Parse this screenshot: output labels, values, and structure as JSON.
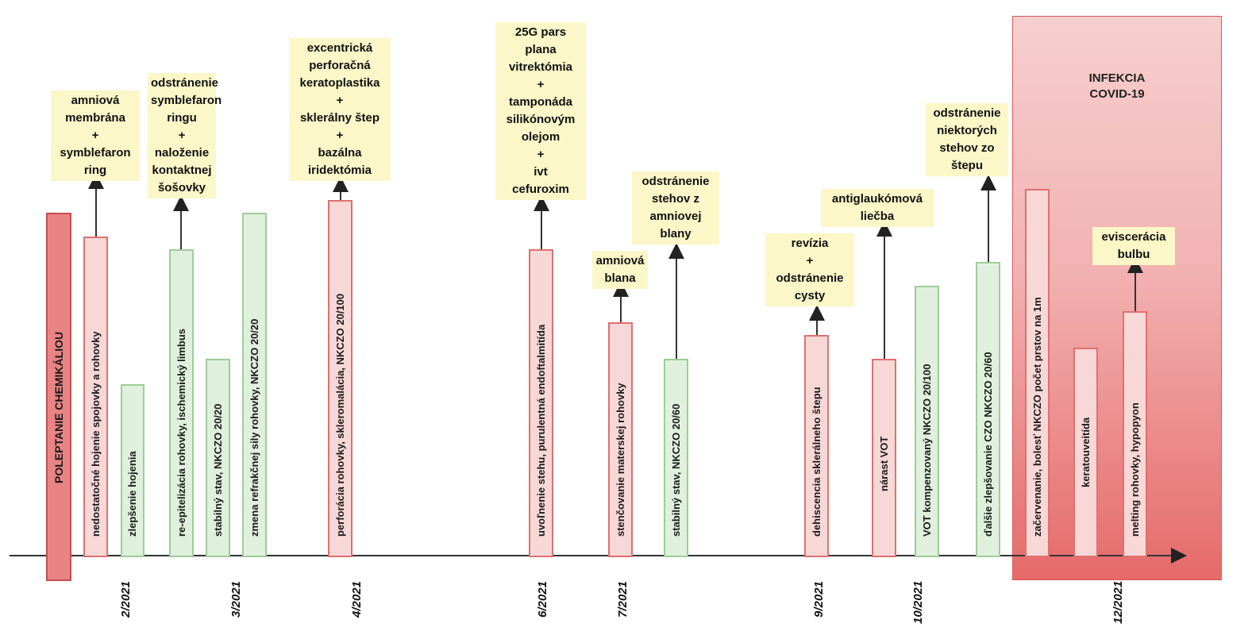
{
  "covid": {
    "label": "INFEKCIA\nCOVID-19"
  },
  "chemical": {
    "label": "POLEPTANIE CHEMIKÁLIOU"
  },
  "bars": [
    {
      "id": "b1",
      "text": "nedostatočné hojenie spojovky a rohovky"
    },
    {
      "id": "b2",
      "text": "zlepšenie hojenia"
    },
    {
      "id": "b3",
      "text": "re-epitelizácia rohovky, ischemický limbus"
    },
    {
      "id": "b4",
      "text": "stabilný stav, NKCZO 20/20"
    },
    {
      "id": "b5",
      "text": "zmena refrakčnej sily rohovky, NKCZO 20/20"
    },
    {
      "id": "b6",
      "text": "perforácia rohovky, skleromalácia, NKCZO 20/100"
    },
    {
      "id": "b7",
      "text": "uvoľnenie stehu, purulentná endoftalmitída"
    },
    {
      "id": "b8",
      "text": "stenčovanie materskej rohovky"
    },
    {
      "id": "b9",
      "text": "stabilný stav, NKCZO 20/60"
    },
    {
      "id": "b10",
      "text": "dehiscencia sklerálneho štepu"
    },
    {
      "id": "b11",
      "text": "nárast VOT"
    },
    {
      "id": "b12",
      "text": "VOT kompenzovaný     NKCZO 20/100"
    },
    {
      "id": "b13",
      "text": "ďalšie zlepšovanie CZO     NKCZO 20/60"
    },
    {
      "id": "b14",
      "text": "začervenanie, bolesť NKCZO počet prstov na 1m"
    },
    {
      "id": "b15",
      "text": "keratouveitída"
    },
    {
      "id": "b16",
      "text": "melting rohovky, hypopyon"
    }
  ],
  "notes": [
    {
      "id": "n1",
      "text": "amniová\nmembrána\n+\nsymblefaron\nring"
    },
    {
      "id": "n2",
      "text": "odstránenie\nsymblefaron\nringu\n+\nnaloženie\nkontaktnej\nšošovky"
    },
    {
      "id": "n3",
      "text": "excentrická\nperforačná\nkeratoplastika\n+\nsklerálny štep\n+\nbazálna\niridektómia"
    },
    {
      "id": "n4",
      "text": "25G pars\nplana\nvitrektómia\n+\ntamponáda\nsilikónovým\nolejom\n+\nivt\ncefuroxim"
    },
    {
      "id": "n5",
      "text": "amniová\nblana"
    },
    {
      "id": "n6",
      "text": "odstránenie\nstehov z\namniovej\nblany"
    },
    {
      "id": "n7",
      "text": "revízia\n+\nodstránenie\ncysty"
    },
    {
      "id": "n8",
      "text": "antiglaukómová\nliečba"
    },
    {
      "id": "n9",
      "text": "odstránenie\nniektorých\nstehov zo\nštepu"
    },
    {
      "id": "n10",
      "text": "eviscerácia\nbulbu"
    }
  ],
  "dates": [
    "2/2021",
    "3/2021",
    "4/2021",
    "6/2021",
    "7/2021",
    "9/2021",
    "10/2021",
    "12/2021"
  ],
  "colors": {
    "red_bar": "#f8d7d7",
    "green_bar": "#dff0dd",
    "note_bg": "#fbf7c8",
    "covid": "#e66a6a"
  }
}
